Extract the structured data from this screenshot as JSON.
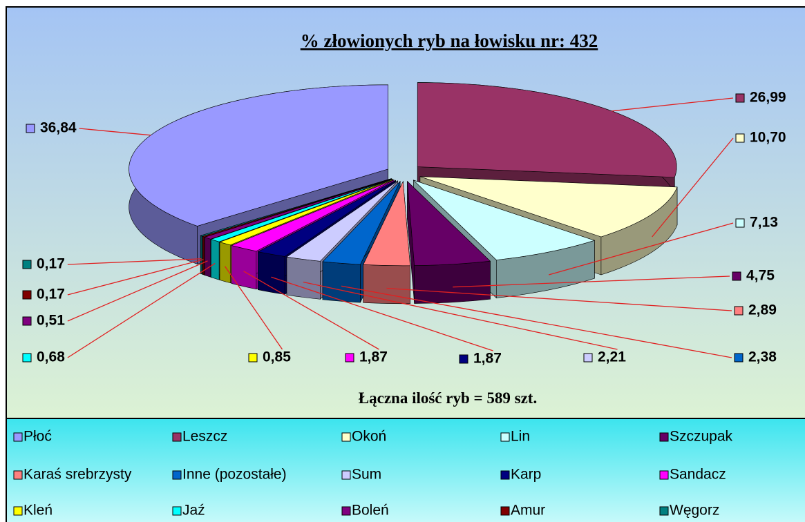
{
  "chart_data": {
    "type": "pie3d",
    "title": "% złowionych ryb na łowisku nr: 432",
    "subtitle": "Łączna ilość ryb = 589 szt.",
    "categories": [
      "Płoć",
      "Leszcz",
      "Okoń",
      "Lin",
      "Szczupak",
      "Karaś srebrzysty",
      "Inne (pozostałe)",
      "Sum",
      "Karp",
      "Sandacz",
      "Kleń",
      "Jaź",
      "Boleń",
      "Amur",
      "Węgorz"
    ],
    "values": [
      36.84,
      26.99,
      10.7,
      7.13,
      4.75,
      2.89,
      2.38,
      2.21,
      1.87,
      1.87,
      0.85,
      0.68,
      0.51,
      0.17,
      0.17
    ],
    "value_labels": [
      "36,84",
      "26,99",
      "10,70",
      "7,13",
      "4,75",
      "2,89",
      "2,38",
      "2,21",
      "1,87",
      "1,87",
      "0,85",
      "0,68",
      "0,51",
      "0,17",
      "0,17"
    ],
    "colors": [
      "#9999ff",
      "#993366",
      "#ffffcc",
      "#ccffff",
      "#660066",
      "#ff8080",
      "#0066cc",
      "#ccccff",
      "#000080",
      "#ff00ff",
      "#ffff00",
      "#00ffff",
      "#800080",
      "#800000",
      "#008080"
    ],
    "legend": "bottom"
  }
}
